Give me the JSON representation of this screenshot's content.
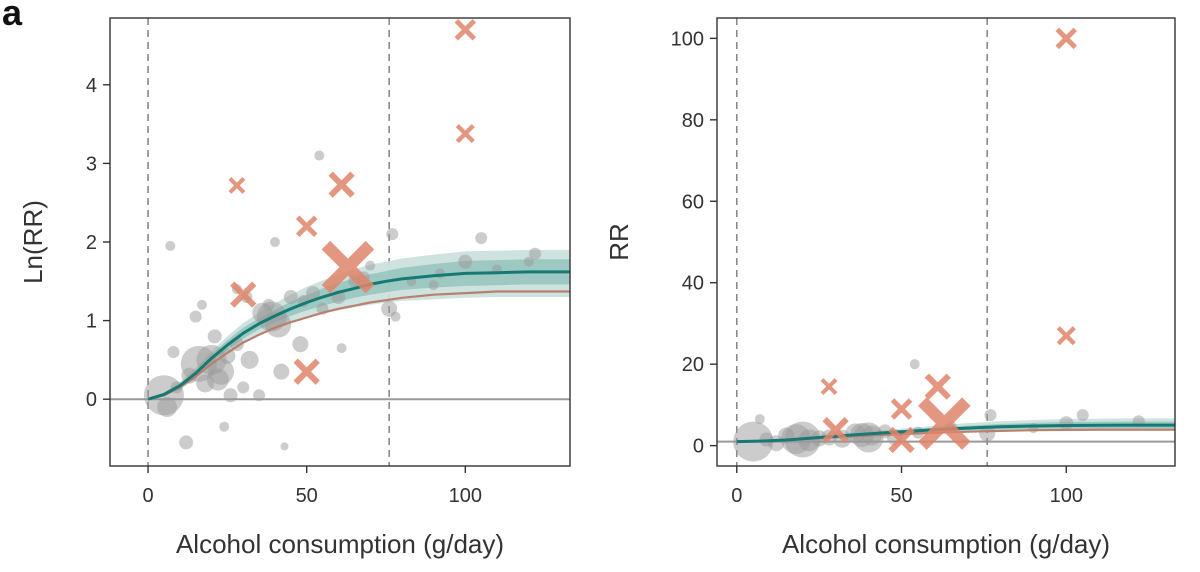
{
  "panel_label": "a",
  "colors": {
    "fit_main": "#157a73",
    "fit_band_inner": "#8dbfb8",
    "fit_band_outer": "#c9e0dc",
    "fit_alt": "#b9806f",
    "point_included": "#9a9a9a",
    "point_excluded": "#e0856a",
    "reference_line": "#999999",
    "guide_line": "#8a8a8a"
  },
  "chart_data": [
    {
      "type": "scatter",
      "xlabel": "Alcohol consumption (g/day)",
      "ylabel": "Ln(RR)",
      "xlim": [
        -12,
        133
      ],
      "ylim": [
        -0.85,
        4.85
      ],
      "xticks": [
        "0",
        "50",
        "100"
      ],
      "xtick_values": [
        0,
        50,
        100
      ],
      "yticks": [
        "0",
        "1",
        "2",
        "3",
        "4"
      ],
      "ytick_values": [
        0,
        1,
        2,
        3,
        4
      ],
      "reference_y": 0,
      "vertical_lines_x": [
        0,
        76
      ],
      "fit_curve": {
        "x": [
          0,
          5,
          10,
          15,
          20,
          25,
          30,
          35,
          40,
          45,
          50,
          55,
          60,
          65,
          70,
          75,
          80,
          90,
          100,
          110,
          120,
          133
        ],
        "y": [
          0,
          0.06,
          0.17,
          0.33,
          0.52,
          0.69,
          0.84,
          0.96,
          1.06,
          1.15,
          1.23,
          1.3,
          1.36,
          1.41,
          1.46,
          1.5,
          1.53,
          1.57,
          1.6,
          1.61,
          1.62,
          1.62
        ],
        "inner_band_lower": [
          0,
          0.05,
          0.14,
          0.29,
          0.47,
          0.63,
          0.77,
          0.89,
          0.98,
          1.06,
          1.13,
          1.19,
          1.24,
          1.29,
          1.33,
          1.36,
          1.39,
          1.42,
          1.44,
          1.45,
          1.46,
          1.46
        ],
        "inner_band_upper": [
          0,
          0.07,
          0.2,
          0.37,
          0.57,
          0.75,
          0.91,
          1.03,
          1.14,
          1.24,
          1.33,
          1.41,
          1.48,
          1.54,
          1.59,
          1.63,
          1.67,
          1.72,
          1.76,
          1.77,
          1.78,
          1.78
        ],
        "outer_band_lower": [
          0,
          0.04,
          0.12,
          0.26,
          0.43,
          0.58,
          0.71,
          0.83,
          0.91,
          0.98,
          1.04,
          1.09,
          1.13,
          1.17,
          1.2,
          1.23,
          1.25,
          1.27,
          1.29,
          1.3,
          1.3,
          1.3
        ],
        "outer_band_upper": [
          0,
          0.08,
          0.22,
          0.4,
          0.61,
          0.8,
          0.97,
          1.1,
          1.22,
          1.33,
          1.43,
          1.51,
          1.59,
          1.65,
          1.71,
          1.75,
          1.79,
          1.84,
          1.88,
          1.89,
          1.9,
          1.9
        ]
      },
      "alt_curve": {
        "x": [
          0,
          5,
          10,
          15,
          20,
          25,
          30,
          35,
          40,
          45,
          50,
          55,
          60,
          65,
          70,
          75,
          80,
          90,
          100,
          110,
          120,
          133
        ],
        "y": [
          0,
          0.05,
          0.15,
          0.29,
          0.45,
          0.59,
          0.72,
          0.82,
          0.91,
          0.98,
          1.04,
          1.1,
          1.15,
          1.19,
          1.23,
          1.26,
          1.29,
          1.33,
          1.35,
          1.37,
          1.37,
          1.37
        ]
      },
      "included_points": [
        {
          "x": 5,
          "y": 0.05,
          "w": 20
        },
        {
          "x": 6,
          "y": -0.1,
          "w": 10
        },
        {
          "x": 7,
          "y": 1.95,
          "w": 5
        },
        {
          "x": 8,
          "y": 0.6,
          "w": 6
        },
        {
          "x": 9,
          "y": 0.15,
          "w": 6
        },
        {
          "x": 12,
          "y": -0.55,
          "w": 7
        },
        {
          "x": 13,
          "y": 0.3,
          "w": 8
        },
        {
          "x": 15,
          "y": 1.05,
          "w": 6
        },
        {
          "x": 16,
          "y": 0.45,
          "w": 18
        },
        {
          "x": 17,
          "y": 1.2,
          "w": 5
        },
        {
          "x": 18,
          "y": 0.2,
          "w": 9
        },
        {
          "x": 20,
          "y": 0.5,
          "w": 15
        },
        {
          "x": 21,
          "y": 0.8,
          "w": 7
        },
        {
          "x": 22,
          "y": 0.25,
          "w": 11
        },
        {
          "x": 23,
          "y": 0.35,
          "w": 13
        },
        {
          "x": 24,
          "y": -0.35,
          "w": 5
        },
        {
          "x": 25,
          "y": 0.55,
          "w": 8
        },
        {
          "x": 26,
          "y": 0.05,
          "w": 7
        },
        {
          "x": 28,
          "y": 0.7,
          "w": 7
        },
        {
          "x": 28,
          "y": 1.4,
          "w": 5
        },
        {
          "x": 30,
          "y": 0.15,
          "w": 6
        },
        {
          "x": 31,
          "y": 1.3,
          "w": 6
        },
        {
          "x": 32,
          "y": 0.5,
          "w": 9
        },
        {
          "x": 35,
          "y": 0.05,
          "w": 6
        },
        {
          "x": 36,
          "y": 1.1,
          "w": 10
        },
        {
          "x": 38,
          "y": 1.2,
          "w": 6
        },
        {
          "x": 39,
          "y": 1.05,
          "w": 15
        },
        {
          "x": 40,
          "y": 2.0,
          "w": 5
        },
        {
          "x": 41,
          "y": 0.95,
          "w": 13
        },
        {
          "x": 42,
          "y": 0.35,
          "w": 8
        },
        {
          "x": 43,
          "y": -0.6,
          "w": 4
        },
        {
          "x": 45,
          "y": 1.3,
          "w": 7
        },
        {
          "x": 48,
          "y": 0.7,
          "w": 8
        },
        {
          "x": 49,
          "y": 1.25,
          "w": 6
        },
        {
          "x": 52,
          "y": 1.35,
          "w": 7
        },
        {
          "x": 54,
          "y": 3.1,
          "w": 5
        },
        {
          "x": 55,
          "y": 1.15,
          "w": 6
        },
        {
          "x": 60,
          "y": 1.3,
          "w": 7
        },
        {
          "x": 61,
          "y": 0.65,
          "w": 5
        },
        {
          "x": 65,
          "y": 1.5,
          "w": 6
        },
        {
          "x": 68,
          "y": 1.55,
          "w": 6
        },
        {
          "x": 70,
          "y": 1.7,
          "w": 5
        },
        {
          "x": 76,
          "y": 1.15,
          "w": 8
        },
        {
          "x": 77,
          "y": 2.1,
          "w": 6
        },
        {
          "x": 78,
          "y": 1.05,
          "w": 5
        },
        {
          "x": 83,
          "y": 1.5,
          "w": 5
        },
        {
          "x": 90,
          "y": 1.45,
          "w": 5
        },
        {
          "x": 92,
          "y": 1.6,
          "w": 5
        },
        {
          "x": 100,
          "y": 1.75,
          "w": 7
        },
        {
          "x": 105,
          "y": 2.05,
          "w": 6
        },
        {
          "x": 110,
          "y": 1.65,
          "w": 5
        },
        {
          "x": 120,
          "y": 1.75,
          "w": 5
        },
        {
          "x": 122,
          "y": 1.85,
          "w": 6
        }
      ],
      "excluded_points": [
        {
          "x": 28,
          "y": 2.72,
          "w": 7
        },
        {
          "x": 30,
          "y": 1.33,
          "w": 11
        },
        {
          "x": 50,
          "y": 2.2,
          "w": 9
        },
        {
          "x": 50,
          "y": 0.35,
          "w": 11
        },
        {
          "x": 61,
          "y": 2.73,
          "w": 11
        },
        {
          "x": 63,
          "y": 1.68,
          "w": 22
        },
        {
          "x": 100,
          "y": 4.7,
          "w": 9
        },
        {
          "x": 100,
          "y": 3.38,
          "w": 8
        }
      ]
    },
    {
      "type": "scatter",
      "xlabel": "Alcohol consumption (g/day)",
      "ylabel": "RR",
      "xlim": [
        -6,
        133
      ],
      "ylim": [
        -5,
        105
      ],
      "xticks": [
        "0",
        "50",
        "100"
      ],
      "xtick_values": [
        0,
        50,
        100
      ],
      "yticks": [
        "0",
        "20",
        "40",
        "60",
        "80",
        "100"
      ],
      "ytick_values": [
        0,
        20,
        40,
        60,
        80,
        100
      ],
      "reference_y": 1,
      "vertical_lines_x": [
        0,
        76
      ],
      "fit_curve": {
        "x": [
          0,
          5,
          10,
          15,
          20,
          25,
          30,
          35,
          40,
          45,
          50,
          55,
          60,
          65,
          70,
          75,
          80,
          90,
          100,
          110,
          120,
          133
        ],
        "y": [
          1,
          1.06,
          1.19,
          1.39,
          1.68,
          1.99,
          2.32,
          2.61,
          2.89,
          3.16,
          3.42,
          3.67,
          3.9,
          4.1,
          4.31,
          4.48,
          4.62,
          4.81,
          4.95,
          5.0,
          5.05,
          5.05
        ],
        "inner_band_lower": [
          1,
          1.05,
          1.15,
          1.34,
          1.6,
          1.88,
          2.16,
          2.43,
          2.66,
          2.89,
          3.1,
          3.29,
          3.46,
          3.63,
          3.78,
          3.9,
          4.01,
          4.14,
          4.22,
          4.26,
          4.3,
          4.3
        ],
        "inner_band_upper": [
          1,
          1.07,
          1.22,
          1.45,
          1.77,
          2.12,
          2.48,
          2.8,
          3.13,
          3.46,
          3.78,
          4.1,
          4.39,
          4.66,
          4.9,
          5.1,
          5.31,
          5.58,
          5.81,
          5.87,
          5.93,
          5.93
        ],
        "outer_band_lower": [
          1,
          1.04,
          1.13,
          1.3,
          1.54,
          1.79,
          2.03,
          2.29,
          2.48,
          2.66,
          2.83,
          2.97,
          3.09,
          3.22,
          3.32,
          3.42,
          3.49,
          3.56,
          3.63,
          3.67,
          3.67,
          3.67
        ],
        "outer_band_upper": [
          1,
          1.08,
          1.25,
          1.49,
          1.84,
          2.23,
          2.64,
          3.0,
          3.39,
          3.78,
          4.18,
          4.53,
          4.9,
          5.21,
          5.53,
          5.75,
          5.99,
          6.3,
          6.55,
          6.62,
          6.69,
          6.69
        ]
      },
      "alt_curve": {
        "x": [
          0,
          5,
          10,
          15,
          20,
          25,
          30,
          35,
          40,
          45,
          50,
          55,
          60,
          65,
          70,
          75,
          80,
          90,
          100,
          110,
          120,
          133
        ],
        "y": [
          1,
          1.05,
          1.16,
          1.34,
          1.57,
          1.8,
          2.05,
          2.27,
          2.48,
          2.66,
          2.83,
          3.0,
          3.16,
          3.29,
          3.42,
          3.53,
          3.63,
          3.78,
          3.86,
          3.94,
          3.94,
          3.94
        ]
      },
      "included_points": [
        {
          "x": 5,
          "y": 1.0,
          "w": 20
        },
        {
          "x": 7,
          "y": 6.5,
          "w": 5
        },
        {
          "x": 9,
          "y": 1.5,
          "w": 7
        },
        {
          "x": 12,
          "y": 0.6,
          "w": 8
        },
        {
          "x": 15,
          "y": 2.5,
          "w": 8
        },
        {
          "x": 18,
          "y": 1.6,
          "w": 15
        },
        {
          "x": 20,
          "y": 1.5,
          "w": 18
        },
        {
          "x": 22,
          "y": 1.3,
          "w": 11
        },
        {
          "x": 25,
          "y": 1.8,
          "w": 8
        },
        {
          "x": 28,
          "y": 2.0,
          "w": 8
        },
        {
          "x": 32,
          "y": 1.7,
          "w": 9
        },
        {
          "x": 36,
          "y": 3.0,
          "w": 10
        },
        {
          "x": 38,
          "y": 2.6,
          "w": 12
        },
        {
          "x": 40,
          "y": 2.0,
          "w": 15
        },
        {
          "x": 41,
          "y": 2.5,
          "w": 10
        },
        {
          "x": 45,
          "y": 3.5,
          "w": 7
        },
        {
          "x": 48,
          "y": 2.0,
          "w": 8
        },
        {
          "x": 54,
          "y": 20.0,
          "w": 5
        },
        {
          "x": 55,
          "y": 3.2,
          "w": 6
        },
        {
          "x": 65,
          "y": 4.5,
          "w": 6
        },
        {
          "x": 76,
          "y": 3.0,
          "w": 8
        },
        {
          "x": 77,
          "y": 7.5,
          "w": 6
        },
        {
          "x": 90,
          "y": 4.3,
          "w": 5
        },
        {
          "x": 100,
          "y": 5.5,
          "w": 7
        },
        {
          "x": 105,
          "y": 7.5,
          "w": 6
        },
        {
          "x": 122,
          "y": 6.0,
          "w": 6
        }
      ],
      "excluded_points": [
        {
          "x": 28,
          "y": 14.5,
          "w": 7
        },
        {
          "x": 30,
          "y": 3.8,
          "w": 11
        },
        {
          "x": 50,
          "y": 9.0,
          "w": 9
        },
        {
          "x": 50,
          "y": 1.4,
          "w": 11
        },
        {
          "x": 61,
          "y": 14.5,
          "w": 11
        },
        {
          "x": 63,
          "y": 5.4,
          "w": 22
        },
        {
          "x": 100,
          "y": 100.0,
          "w": 9
        },
        {
          "x": 100,
          "y": 27.0,
          "w": 8
        }
      ]
    }
  ]
}
